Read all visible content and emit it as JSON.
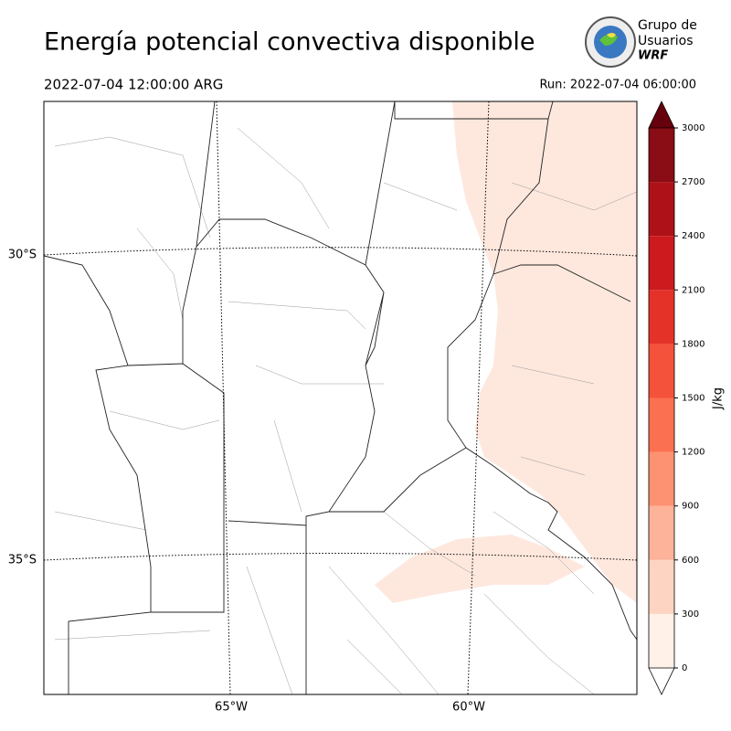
{
  "header": {
    "title": "Energía potencial convectiva disponible",
    "valid_time": "2022-07-04 12:00:00 ARG",
    "run": "Run: 2022-07-04 06:00:00"
  },
  "logo": {
    "lines": [
      "Grupo de",
      "Usuarios",
      "WRF"
    ]
  },
  "map": {
    "lat_labels": [
      "30°S",
      "35°S"
    ],
    "lon_labels": [
      "65°W",
      "60°W"
    ]
  },
  "colorbar": {
    "label": "J/kg",
    "ticks": [
      0,
      300,
      600,
      900,
      1200,
      1500,
      1800,
      2100,
      2400,
      2700,
      3000
    ],
    "colors": [
      "#fff0e8",
      "#fdd4c2",
      "#fcb399",
      "#fc9272",
      "#fb7050",
      "#f4523a",
      "#e53228",
      "#cc1a1e",
      "#ae1218",
      "#8a0c14"
    ],
    "over_color": "#67000d",
    "under_color": "#ffffff"
  }
}
